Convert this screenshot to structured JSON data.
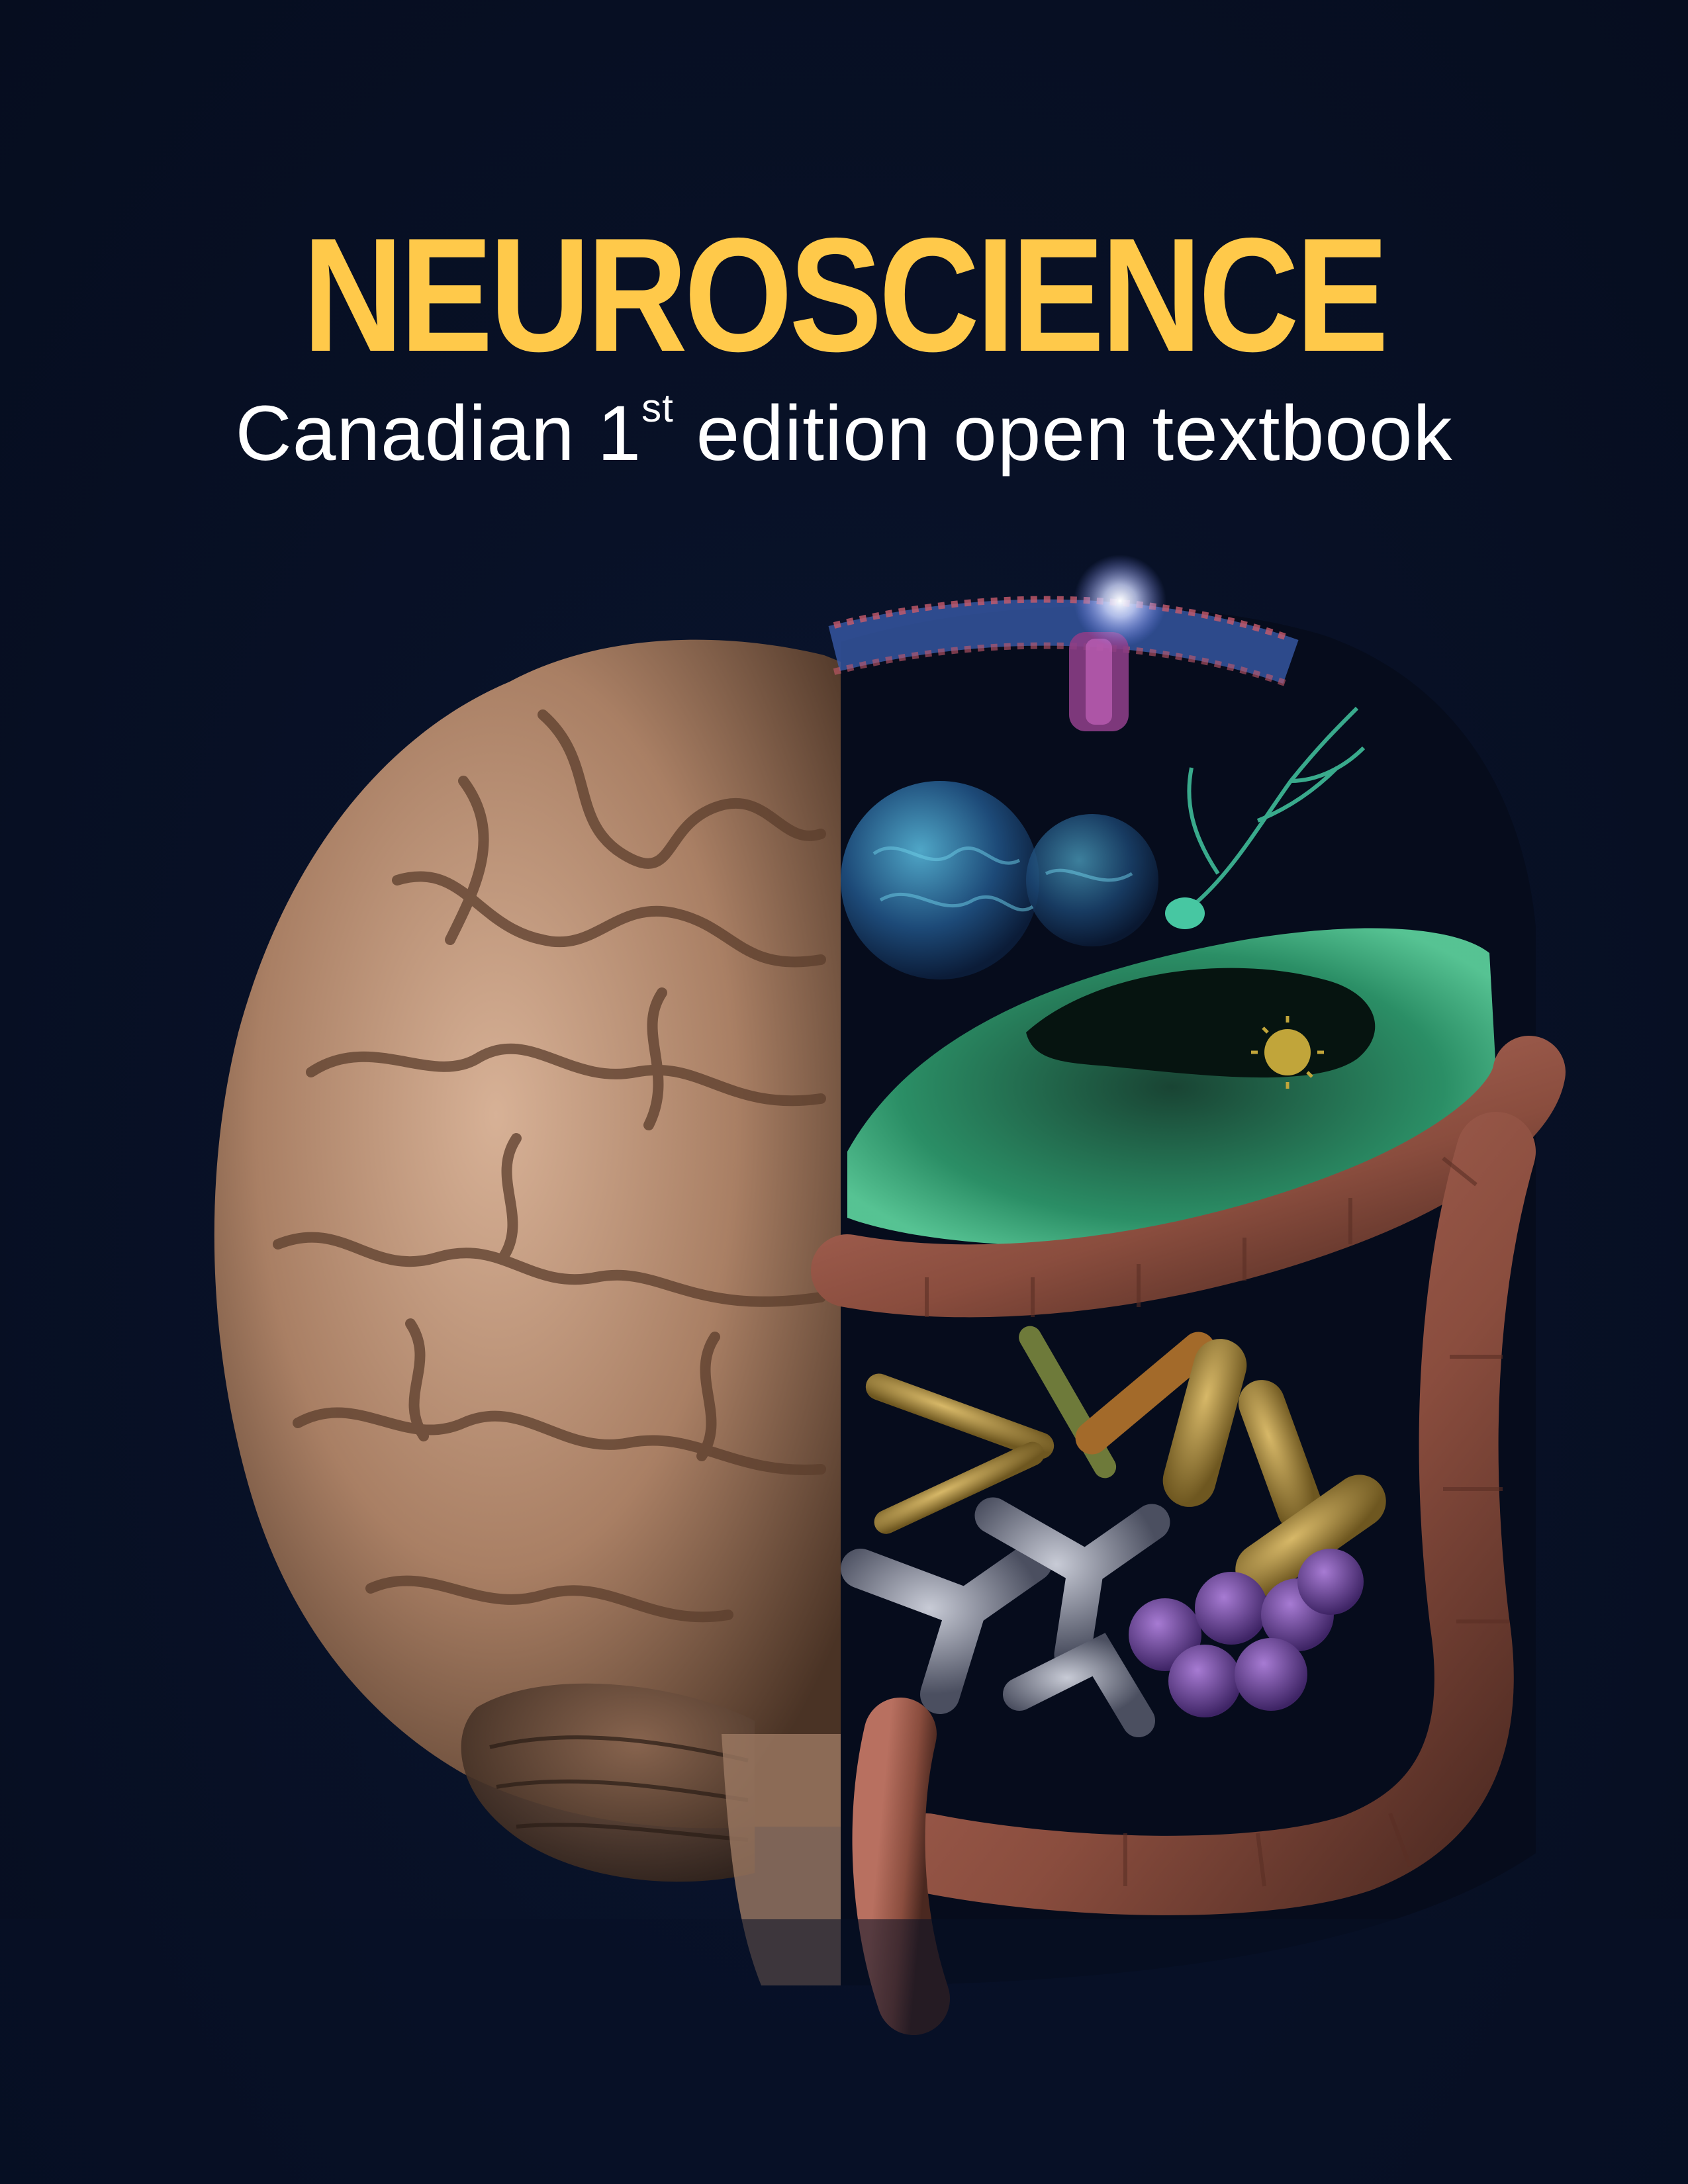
{
  "cover": {
    "title": "NEUROSCIENCE",
    "subtitle_pre": "Canadian 1",
    "subtitle_sup": "st",
    "subtitle_post": " edition open textbook"
  },
  "colors": {
    "background": "#081126",
    "title": "#ffc94a",
    "subtitle": "#ffffff",
    "brain": "#b58e72",
    "neuron_glow": "#3fae7a",
    "intestine": "#9a5a48",
    "membrane": "#3b5fb0"
  }
}
